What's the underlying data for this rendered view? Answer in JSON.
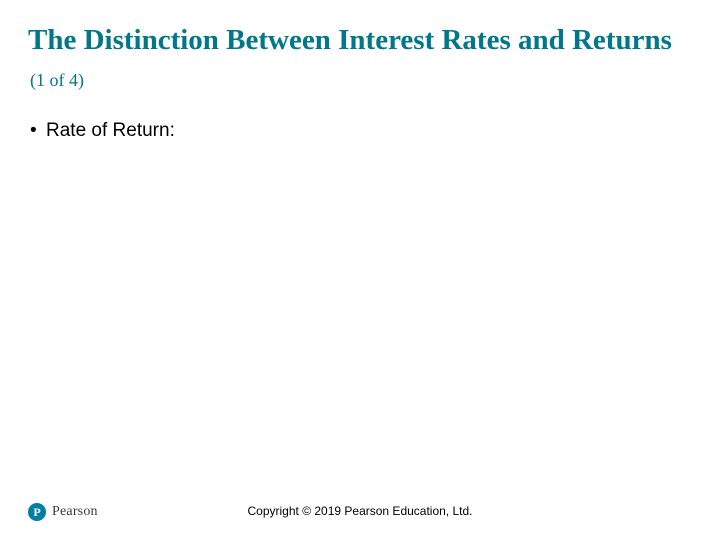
{
  "colors": {
    "title": "#00778b",
    "body_text": "#000000",
    "background": "#ffffff",
    "logo_badge": "#007fa3",
    "logo_text": "#3a3a3a"
  },
  "typography": {
    "title_family": "Times New Roman",
    "title_main_size_pt": 22,
    "title_sub_size_pt": 14,
    "body_family": "Arial",
    "body_size_pt": 14,
    "footer_size_pt": 9
  },
  "title": {
    "main": "The Distinction Between Interest Rates and Returns",
    "sub": "(1 of 4)"
  },
  "bullets": [
    {
      "text": "Rate of Return:"
    }
  ],
  "footer": {
    "logo_letter": "P",
    "logo_text": "Pearson",
    "copyright": "Copyright © 2019 Pearson Education, Ltd."
  }
}
